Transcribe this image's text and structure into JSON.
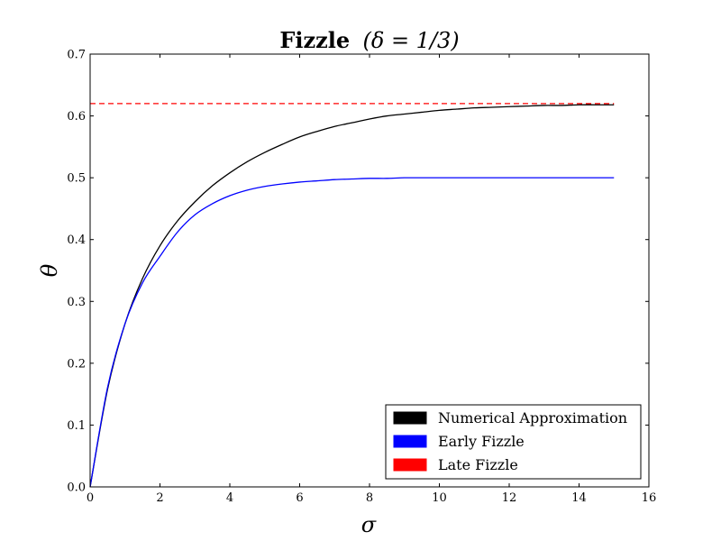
{
  "chart_data": {
    "type": "line",
    "title": "Fizzle (δ = 1/3)",
    "title_main": "Fizzle",
    "title_math": "(δ = 1/3)",
    "xlabel": "σ",
    "ylabel": "θ",
    "xlim": [
      0,
      16
    ],
    "ylim": [
      0,
      0.7
    ],
    "x_ticks": [
      "0",
      "2",
      "4",
      "6",
      "8",
      "10",
      "12",
      "14",
      "16"
    ],
    "y_ticks": [
      "0.0",
      "0.1",
      "0.2",
      "0.3",
      "0.4",
      "0.5",
      "0.6",
      "0.7"
    ],
    "grid": false,
    "legend_position": "lower-right",
    "x": [
      0,
      0.5,
      1,
      1.5,
      2,
      2.5,
      3,
      3.5,
      4,
      4.5,
      5,
      5.5,
      6,
      6.5,
      7,
      7.5,
      8,
      8.5,
      9,
      9.5,
      10,
      10.5,
      11,
      11.5,
      12,
      12.5,
      13,
      13.5,
      14,
      14.5,
      15
    ],
    "series": [
      {
        "name": "Numerical Approximation",
        "color": "#000000",
        "style": "solid",
        "values": [
          0.0,
          0.158,
          0.264,
          0.337,
          0.39,
          0.43,
          0.461,
          0.487,
          0.508,
          0.526,
          0.541,
          0.554,
          0.566,
          0.575,
          0.583,
          0.589,
          0.595,
          0.6,
          0.603,
          0.606,
          0.609,
          0.611,
          0.613,
          0.614,
          0.615,
          0.616,
          0.617,
          0.617,
          0.618,
          0.618,
          0.618
        ]
      },
      {
        "name": "Early Fizzle",
        "color": "#0000ff",
        "style": "solid",
        "values": [
          0.0,
          0.161,
          0.264,
          0.33,
          0.373,
          0.412,
          0.44,
          0.458,
          0.471,
          0.48,
          0.486,
          0.49,
          0.493,
          0.495,
          0.497,
          0.498,
          0.499,
          0.499,
          0.5,
          0.5,
          0.5,
          0.5,
          0.5,
          0.5,
          0.5,
          0.5,
          0.5,
          0.5,
          0.5,
          0.5,
          0.5
        ]
      },
      {
        "name": "Late Fizzle",
        "color": "#ff0000",
        "style": "dashed",
        "values": [
          0.62,
          0.62,
          0.62,
          0.62,
          0.62,
          0.62,
          0.62,
          0.62,
          0.62,
          0.62,
          0.62,
          0.62,
          0.62,
          0.62,
          0.62,
          0.62,
          0.62,
          0.62,
          0.62,
          0.62,
          0.62,
          0.62,
          0.62,
          0.62,
          0.62,
          0.62,
          0.62,
          0.62,
          0.62,
          0.62,
          0.62
        ]
      }
    ]
  }
}
